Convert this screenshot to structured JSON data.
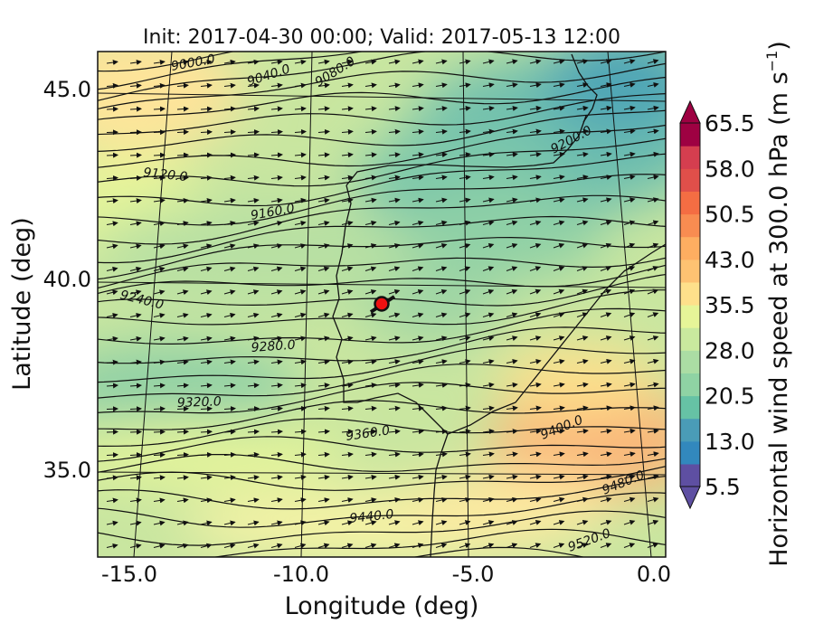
{
  "title": "Init: 2017-04-30 00:00; Valid: 2017-05-13 12:00",
  "map": {
    "xlabel": "Longitude (deg)",
    "ylabel": "Latitude (deg)",
    "lon_ticks": [
      "-15.0",
      "-10.0",
      "-5.0",
      "0.0"
    ],
    "lat_ticks": [
      "45.0",
      "40.0",
      "35.0"
    ],
    "marker": {
      "lon": -7.7,
      "lat": 39.3,
      "color": "#ee1111"
    },
    "contour_labels": [
      "9000.0",
      "9040.0",
      "9080.0",
      "9120.0",
      "9160.0",
      "9200.0",
      "9240.0",
      "9280.0",
      "9320.0",
      "9360.0",
      "9400.0",
      "9440.0",
      "9480.0",
      "9520.0"
    ]
  },
  "colorbar": {
    "label": "Horizontal wind speed at 300.0 hPa (m s",
    "label_exp": "−1",
    "label_close": ")",
    "ticks": [
      "65.5",
      "58.0",
      "50.5",
      "43.0",
      "35.5",
      "28.0",
      "20.5",
      "13.0",
      "5.5"
    ],
    "colors": [
      "#5e4fa2",
      "#3288bd",
      "#4a9cb7",
      "#66c2a5",
      "#8fd3a4",
      "#abdda4",
      "#c9e99e",
      "#e6f598",
      "#fee08b",
      "#fdc272",
      "#fdae61",
      "#f88c51",
      "#f46d43",
      "#e04f4a",
      "#d53e4f",
      "#9e0142"
    ]
  }
}
